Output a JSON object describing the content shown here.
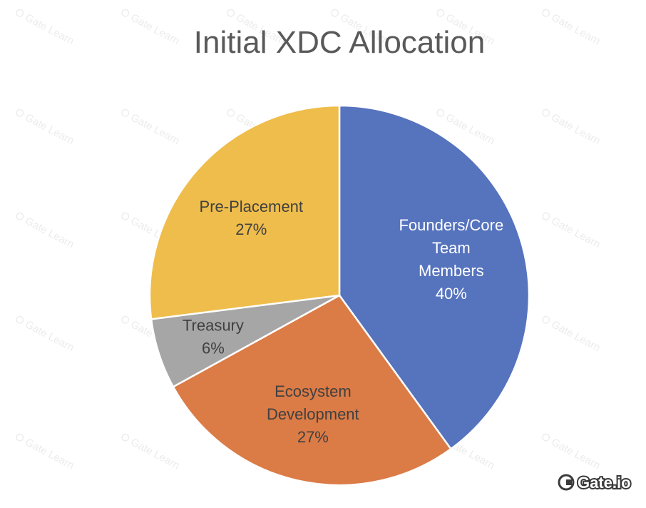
{
  "chart_data": {
    "type": "pie",
    "title": "Initial XDC Allocation",
    "slices": [
      {
        "lines": [
          "Founders/Core",
          "Team",
          "Members"
        ],
        "percent_label": "40%",
        "value": 40,
        "color": "#5673bd",
        "text_color": "#ffffff"
      },
      {
        "lines": [
          "Ecosystem",
          "Development"
        ],
        "percent_label": "27%",
        "value": 27,
        "color": "#db7b46",
        "text_color": "#404040"
      },
      {
        "lines": [
          "Treasury"
        ],
        "percent_label": "6%",
        "value": 6,
        "color": "#a6a6a6",
        "text_color": "#404040"
      },
      {
        "lines": [
          "Pre-Placement"
        ],
        "percent_label": "27%",
        "value": 27,
        "color": "#efbd4b",
        "text_color": "#404040"
      }
    ],
    "legend": "none"
  },
  "watermark": {
    "text": "Gate Learn",
    "brand": "Gate.io"
  }
}
